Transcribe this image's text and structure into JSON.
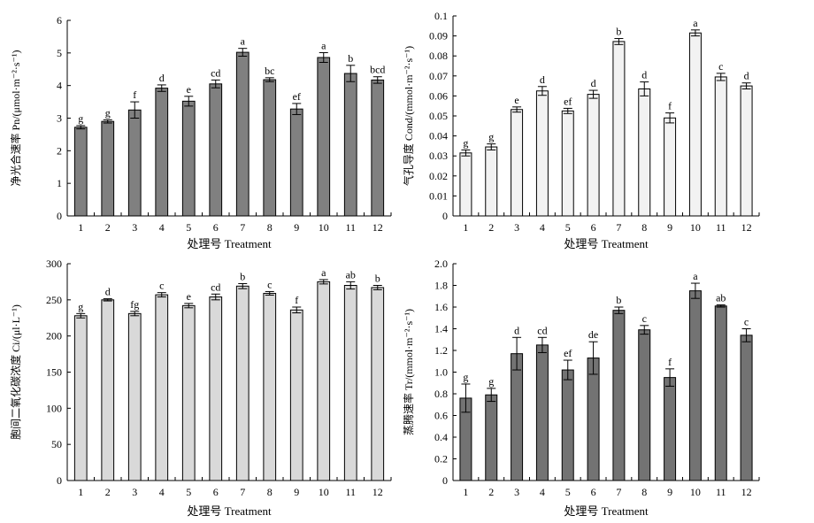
{
  "chart_data": [
    {
      "type": "bar",
      "ylabel": "净光合速率 Pn/(μmol·m⁻²·s⁻¹)",
      "xlabel": "处理号 Treatment",
      "categories": [
        "1",
        "2",
        "3",
        "4",
        "5",
        "6",
        "7",
        "8",
        "9",
        "10",
        "11",
        "12"
      ],
      "values": [
        2.72,
        2.9,
        3.25,
        3.92,
        3.52,
        4.05,
        5.02,
        4.18,
        3.28,
        4.86,
        4.37,
        4.17
      ],
      "errors": [
        0.05,
        0.05,
        0.25,
        0.1,
        0.15,
        0.12,
        0.12,
        0.06,
        0.17,
        0.15,
        0.25,
        0.1
      ],
      "labels": [
        "g",
        "g",
        "f",
        "d",
        "e",
        "cd",
        "a",
        "bc",
        "ef",
        "a",
        "b",
        "bcd"
      ],
      "ylim": [
        0,
        6
      ],
      "yticks": [
        "0",
        "1",
        "2",
        "3",
        "4",
        "5",
        "6"
      ],
      "fill": "#808080"
    },
    {
      "type": "bar",
      "ylabel": "气孔导度 Cond/(mmol·m⁻²·s⁻¹)",
      "xlabel": "处理号 Treatment",
      "categories": [
        "1",
        "2",
        "3",
        "4",
        "5",
        "6",
        "7",
        "8",
        "9",
        "10",
        "11",
        "12"
      ],
      "values": [
        0.0315,
        0.0345,
        0.0532,
        0.0625,
        0.0525,
        0.0608,
        0.0872,
        0.0635,
        0.049,
        0.0915,
        0.0695,
        0.065
      ],
      "errors": [
        0.0015,
        0.0015,
        0.0013,
        0.0022,
        0.0013,
        0.002,
        0.0015,
        0.0035,
        0.0025,
        0.0015,
        0.0018,
        0.0015
      ],
      "labels": [
        "g",
        "g",
        "e",
        "d",
        "ef",
        "d",
        "b",
        "d",
        "f",
        "a",
        "c",
        "d"
      ],
      "ylim": [
        0,
        0.1
      ],
      "yticks": [
        "0",
        "0.01",
        "0.02",
        "0.03",
        "0.04",
        "0.05",
        "0.06",
        "0.07",
        "0.08",
        "0.09",
        "0.1"
      ],
      "fill": "#f2f2f2"
    },
    {
      "type": "bar",
      "ylabel": "胞间二氧化碳浓度 Ci/(μl·L⁻¹)",
      "xlabel": "处理号 Treatment",
      "categories": [
        "1",
        "2",
        "3",
        "4",
        "5",
        "6",
        "7",
        "8",
        "9",
        "10",
        "11",
        "12"
      ],
      "values": [
        228,
        250,
        231,
        257,
        242,
        254,
        269,
        259,
        236,
        275,
        270,
        267
      ],
      "errors": [
        3,
        1.5,
        3,
        3,
        3,
        4,
        3.5,
        2.5,
        4,
        3,
        5,
        3
      ],
      "labels": [
        "g",
        "d",
        "fg",
        "c",
        "e",
        "cd",
        "b",
        "c",
        "f",
        "a",
        "ab",
        "b"
      ],
      "ylim": [
        0,
        300
      ],
      "yticks": [
        "0",
        "50",
        "100",
        "150",
        "200",
        "250",
        "300"
      ],
      "fill": "#d9d9d9"
    },
    {
      "type": "bar",
      "ylabel": "蒸腾速率 Tr/(mmol·m⁻²·s⁻¹)",
      "xlabel": "处理号 Treatment",
      "categories": [
        "1",
        "2",
        "3",
        "4",
        "5",
        "6",
        "7",
        "8",
        "9",
        "10",
        "11",
        "12"
      ],
      "values": [
        0.76,
        0.79,
        1.17,
        1.25,
        1.02,
        1.13,
        1.57,
        1.39,
        0.95,
        1.75,
        1.61,
        1.34
      ],
      "errors": [
        0.13,
        0.06,
        0.15,
        0.07,
        0.09,
        0.15,
        0.03,
        0.04,
        0.08,
        0.07,
        0.01,
        0.06
      ],
      "labels": [
        "g",
        "g",
        "d",
        "cd",
        "ef",
        "de",
        "b",
        "c",
        "f",
        "a",
        "ab",
        "c"
      ],
      "ylim": [
        0,
        2.0
      ],
      "yticks": [
        "0",
        "0.2",
        "0.4",
        "0.6",
        "0.8",
        "1.0",
        "1.2",
        "1.4",
        "1.6",
        "1.8",
        "2.0"
      ],
      "fill": "#737373"
    }
  ]
}
